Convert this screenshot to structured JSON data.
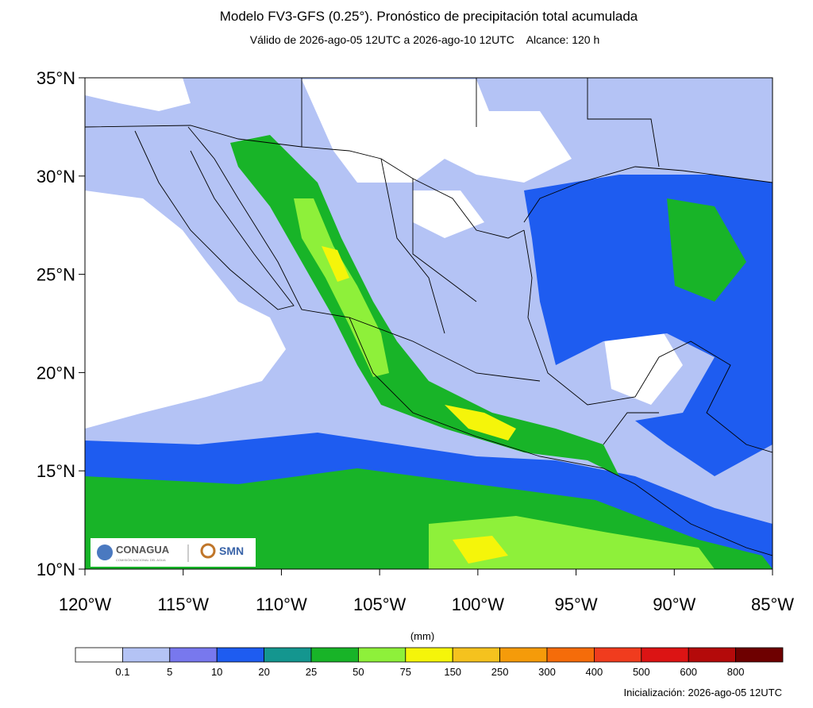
{
  "header": {
    "title": "Modelo FV3-GFS (0.25°). Pronóstico de precipitación total acumulada",
    "subtitle": "Válido de 2026-ago-05 12UTC a 2026-ago-10 12UTC    Alcance: 120 h"
  },
  "map": {
    "lat_labels": [
      "35°N",
      "30°N",
      "25°N",
      "20°N",
      "15°N",
      "10°N"
    ],
    "lon_labels": [
      "120°W",
      "115°W",
      "110°W",
      "105°W",
      "100°W",
      "95°W",
      "90°W",
      "85°W"
    ]
  },
  "colorbar": {
    "unit": "(mm)",
    "levels": [
      0.1,
      5,
      10,
      20,
      25,
      50,
      75,
      150,
      250,
      300,
      400,
      500,
      600,
      800
    ],
    "colors": [
      "#ffffff",
      "#b4c3f5",
      "#7878ee",
      "#1e5cf0",
      "#14968f",
      "#18b428",
      "#8ef03a",
      "#f5f50a",
      "#f5c21e",
      "#f59b0a",
      "#f56c0a",
      "#f03c1e",
      "#dc1414",
      "#b40a0a",
      "#6e0000"
    ]
  },
  "footer": {
    "init": "Inicialización: 2026-ago-05 12UTC"
  },
  "logos": {
    "conagua": "CONAGUA",
    "conagua_sub": "COMISIÓN NACIONAL DEL AGUA",
    "smn": "SMN"
  }
}
